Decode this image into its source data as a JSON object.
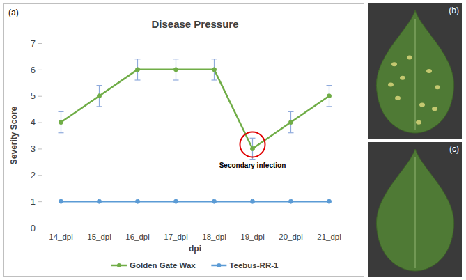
{
  "chart_data": {
    "type": "line",
    "title": "Disease Pressure",
    "x_label": "dpi",
    "y_label": "Severity Score",
    "panel_labels": [
      "(a)",
      "(b)",
      "(c)"
    ],
    "categories": [
      "14_dpi",
      "15_dpi",
      "16_dpi",
      "17_dpi",
      "18_dpi",
      "19_dpi",
      "20_dpi",
      "21_dpi"
    ],
    "series": [
      {
        "name": "Golden Gate Wax",
        "color": "#70ad47",
        "marker": "circle",
        "values": [
          4,
          5,
          6,
          6,
          6,
          3,
          4,
          5
        ],
        "errors": [
          0.4,
          0.4,
          0.4,
          0.4,
          0.4,
          0.4,
          0.4,
          0.4
        ]
      },
      {
        "name": "Teebus-RR-1",
        "color": "#5b9bd5",
        "marker": "circle",
        "values": [
          1,
          1,
          1,
          1,
          1,
          1,
          1,
          1
        ]
      }
    ],
    "ylim": [
      0,
      7
    ],
    "yticks": [
      0,
      1,
      2,
      3,
      4,
      5,
      6,
      7
    ],
    "grid": false,
    "legend": "bottom",
    "annotations": [
      {
        "text": "Secondary infection",
        "x": "19_dpi"
      }
    ]
  }
}
